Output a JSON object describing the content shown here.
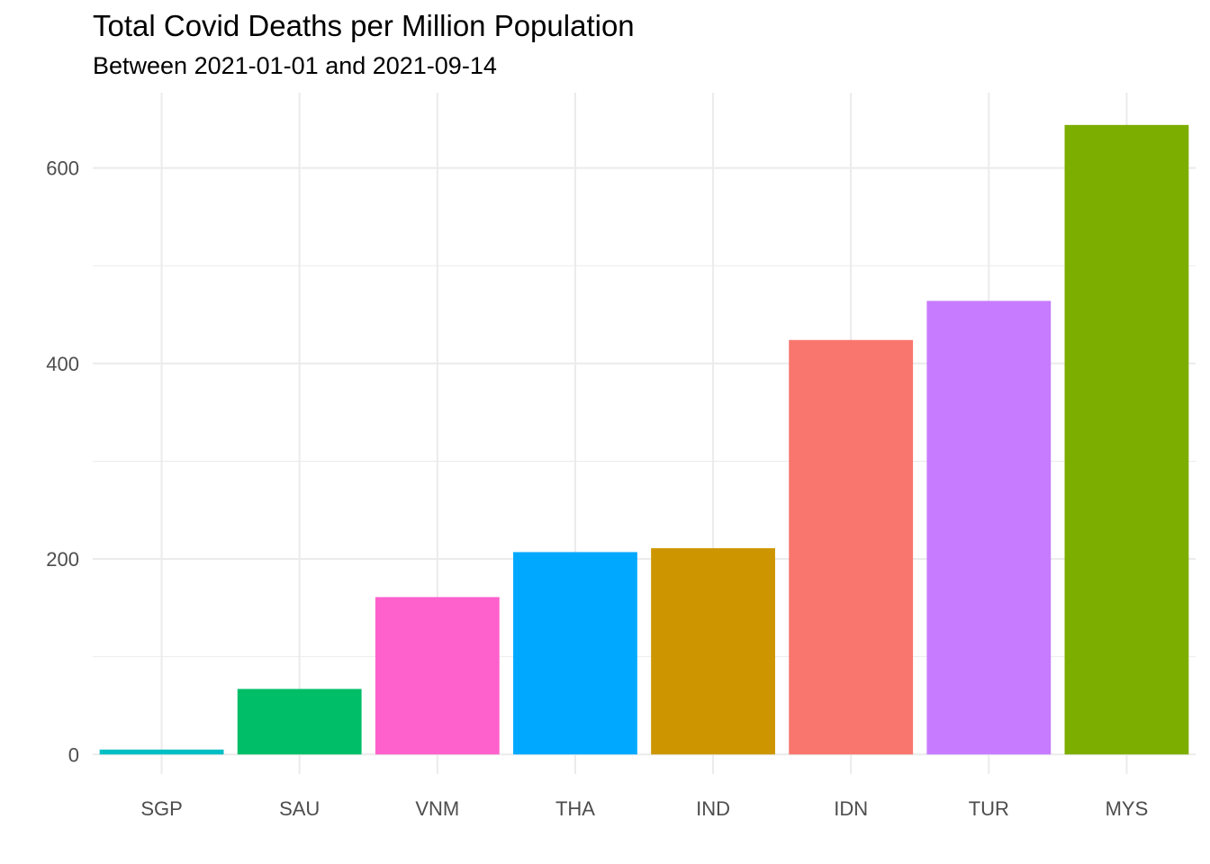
{
  "chart_data": {
    "type": "bar",
    "title": "Total Covid Deaths per Million Population",
    "subtitle": "Between 2021-01-01 and 2021-09-14",
    "xlabel": "",
    "ylabel": "",
    "categories": [
      "SGP",
      "SAU",
      "VNM",
      "THA",
      "IND",
      "IDN",
      "TUR",
      "MYS"
    ],
    "values": [
      5,
      67,
      161,
      207,
      211,
      424,
      464,
      644
    ],
    "colors": [
      "#00BFC4",
      "#00BE67",
      "#FF61CC",
      "#00A9FF",
      "#CD9600",
      "#F8766D",
      "#C77CFF",
      "#7CAE00"
    ],
    "ylim": [
      -20,
      677
    ],
    "yticks": [
      0,
      200,
      400,
      600
    ],
    "ytick_labels": [
      "0",
      "200",
      "400",
      "600"
    ],
    "grid": true,
    "legend": "none"
  }
}
